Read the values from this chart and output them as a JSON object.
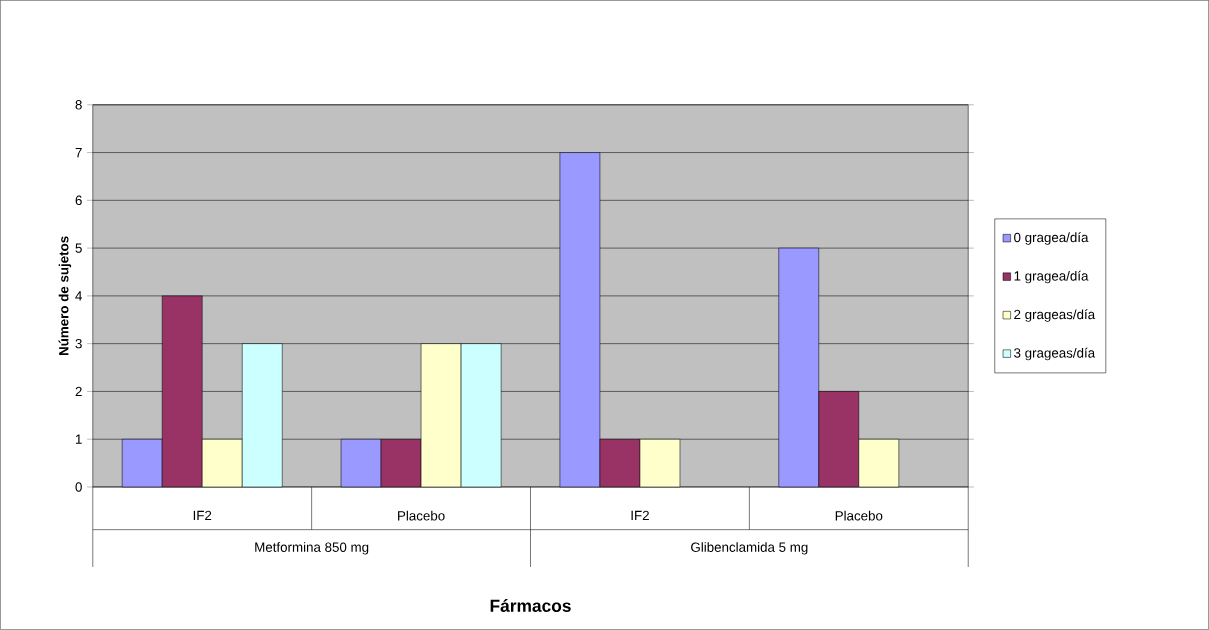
{
  "chart_data": {
    "type": "bar",
    "xlabel": "Fármacos",
    "ylabel": "Número de sujetos",
    "categories": [
      "IF2",
      "Placebo",
      "IF2",
      "Placebo"
    ],
    "annotations": [
      "Metformina 850 mg",
      "Glibenclamida 5 mg"
    ],
    "series": [
      {
        "name": "0 gragea/día",
        "color": "#9999ff",
        "values": [
          1,
          1,
          7,
          5
        ]
      },
      {
        "name": "1 gragea/día",
        "color": "#993366",
        "values": [
          4,
          1,
          1,
          2
        ]
      },
      {
        "name": "2 grageas/día",
        "color": "#ffffcc",
        "values": [
          1,
          3,
          1,
          1
        ]
      },
      {
        "name": "3 grageas/día",
        "color": "#ccffff",
        "values": [
          3,
          3,
          null,
          null
        ]
      }
    ],
    "ylim": [
      0,
      8
    ],
    "yticks": [
      0,
      1,
      2,
      3,
      4,
      5,
      6,
      7,
      8
    ],
    "grid": "y",
    "legend": "right"
  }
}
